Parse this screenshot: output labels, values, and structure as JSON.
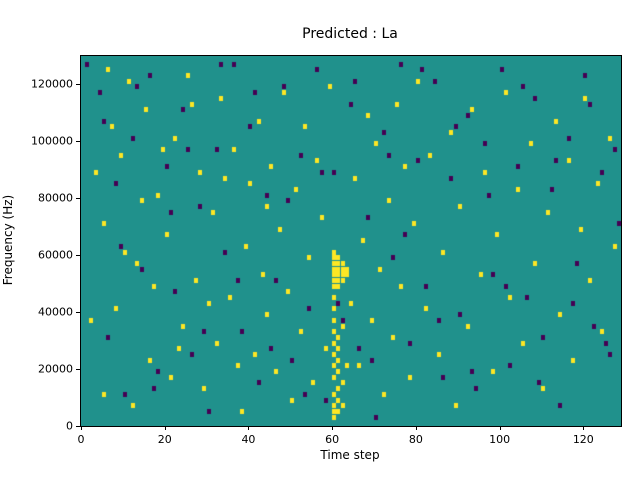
{
  "chart_data": {
    "type": "heatmap",
    "title": "Predicted : La",
    "xlabel": "Time step",
    "ylabel": "Frequency (Hz)",
    "xlim": [
      0,
      129
    ],
    "ylim": [
      0,
      130000
    ],
    "x_ticks": [
      0,
      20,
      40,
      60,
      80,
      100,
      120
    ],
    "y_ticks": [
      0,
      20000,
      40000,
      60000,
      80000,
      100000,
      120000
    ],
    "grid": {
      "cols": 129,
      "rows": 65,
      "cell_freq_hz": 2000
    },
    "colors": {
      "background": "#20918c",
      "high": "#fde724",
      "low": "#440154"
    },
    "legend": "none",
    "cells": {
      "yellow": [
        [
          60,
          1
        ],
        [
          60,
          2
        ],
        [
          60,
          3
        ],
        [
          60,
          5
        ],
        [
          60,
          8
        ],
        [
          60,
          10
        ],
        [
          60,
          12
        ],
        [
          60,
          14
        ],
        [
          60,
          16
        ],
        [
          60,
          18
        ],
        [
          60,
          20
        ],
        [
          60,
          22
        ],
        [
          60,
          24
        ],
        [
          60,
          25
        ],
        [
          60,
          26
        ],
        [
          60,
          27
        ],
        [
          60,
          28
        ],
        [
          60,
          29
        ],
        [
          60,
          30
        ],
        [
          61,
          2
        ],
        [
          61,
          4
        ],
        [
          61,
          6
        ],
        [
          61,
          9
        ],
        [
          61,
          11
        ],
        [
          61,
          13
        ],
        [
          61,
          15
        ],
        [
          61,
          24
        ],
        [
          61,
          25
        ],
        [
          61,
          26
        ],
        [
          61,
          27
        ],
        [
          61,
          28
        ],
        [
          61,
          29
        ],
        [
          62,
          3
        ],
        [
          62,
          7
        ],
        [
          62,
          17
        ],
        [
          62,
          25
        ],
        [
          62,
          26
        ],
        [
          62,
          27
        ],
        [
          62,
          28
        ],
        [
          63,
          10
        ],
        [
          63,
          26
        ],
        [
          63,
          27
        ],
        [
          5,
          5
        ],
        [
          5,
          35
        ],
        [
          6,
          62
        ],
        [
          8,
          20
        ],
        [
          9,
          47
        ],
        [
          12,
          3
        ],
        [
          13,
          28
        ],
        [
          15,
          55
        ],
        [
          16,
          11
        ],
        [
          18,
          40
        ],
        [
          20,
          33
        ],
        [
          21,
          8
        ],
        [
          22,
          50
        ],
        [
          24,
          17
        ],
        [
          25,
          61
        ],
        [
          27,
          25
        ],
        [
          28,
          44
        ],
        [
          29,
          6
        ],
        [
          31,
          37
        ],
        [
          32,
          14
        ],
        [
          33,
          57
        ],
        [
          35,
          22
        ],
        [
          36,
          48
        ],
        [
          38,
          2
        ],
        [
          39,
          31
        ],
        [
          40,
          42
        ],
        [
          41,
          12
        ],
        [
          42,
          53
        ],
        [
          43,
          26
        ],
        [
          44,
          38
        ],
        [
          44,
          19
        ],
        [
          45,
          45
        ],
        [
          46,
          9
        ],
        [
          47,
          34
        ],
        [
          48,
          58
        ],
        [
          49,
          23
        ],
        [
          50,
          4
        ],
        [
          51,
          41
        ],
        [
          52,
          16
        ],
        [
          53,
          52
        ],
        [
          54,
          29
        ],
        [
          55,
          7
        ],
        [
          56,
          46
        ],
        [
          57,
          36
        ],
        [
          58,
          13
        ],
        [
          59,
          59
        ],
        [
          64,
          21
        ],
        [
          65,
          43
        ],
        [
          66,
          10
        ],
        [
          67,
          32
        ],
        [
          68,
          54
        ],
        [
          69,
          18
        ],
        [
          70,
          49
        ],
        [
          71,
          27
        ],
        [
          72,
          5
        ],
        [
          73,
          39
        ],
        [
          74,
          15
        ],
        [
          75,
          56
        ],
        [
          76,
          24
        ],
        [
          77,
          45
        ],
        [
          78,
          8
        ],
        [
          79,
          35
        ],
        [
          80,
          60
        ],
        [
          82,
          20
        ],
        [
          83,
          47
        ],
        [
          85,
          12
        ],
        [
          86,
          30
        ],
        [
          88,
          51
        ],
        [
          89,
          3
        ],
        [
          90,
          38
        ],
        [
          92,
          17
        ],
        [
          93,
          55
        ],
        [
          95,
          26
        ],
        [
          96,
          44
        ],
        [
          98,
          9
        ],
        [
          99,
          33
        ],
        [
          101,
          58
        ],
        [
          102,
          22
        ],
        [
          104,
          41
        ],
        [
          105,
          14
        ],
        [
          107,
          49
        ],
        [
          108,
          28
        ],
        [
          110,
          6
        ],
        [
          111,
          37
        ],
        [
          113,
          53
        ],
        [
          114,
          19
        ],
        [
          116,
          46
        ],
        [
          117,
          11
        ],
        [
          119,
          34
        ],
        [
          120,
          57
        ],
        [
          121,
          25
        ],
        [
          123,
          42
        ],
        [
          124,
          16
        ],
        [
          126,
          50
        ],
        [
          127,
          31
        ],
        [
          3,
          44
        ],
        [
          2,
          18
        ],
        [
          7,
          52
        ],
        [
          10,
          30
        ],
        [
          11,
          60
        ],
        [
          14,
          39
        ],
        [
          17,
          24
        ],
        [
          19,
          48
        ],
        [
          23,
          13
        ],
        [
          26,
          56
        ],
        [
          30,
          21
        ],
        [
          34,
          43
        ],
        [
          37,
          10
        ]
      ],
      "purple": [
        [
          1,
          63
        ],
        [
          4,
          58
        ],
        [
          6,
          15
        ],
        [
          8,
          42
        ],
        [
          10,
          5
        ],
        [
          12,
          50
        ],
        [
          14,
          27
        ],
        [
          16,
          61
        ],
        [
          18,
          9
        ],
        [
          20,
          45
        ],
        [
          22,
          23
        ],
        [
          24,
          55
        ],
        [
          26,
          12
        ],
        [
          28,
          38
        ],
        [
          30,
          2
        ],
        [
          32,
          48
        ],
        [
          34,
          30
        ],
        [
          36,
          63
        ],
        [
          38,
          16
        ],
        [
          40,
          52
        ],
        [
          42,
          7
        ],
        [
          44,
          40
        ],
        [
          46,
          25
        ],
        [
          48,
          59
        ],
        [
          50,
          11
        ],
        [
          52,
          47
        ],
        [
          54,
          20
        ],
        [
          56,
          62
        ],
        [
          58,
          4
        ],
        [
          60,
          44
        ],
        [
          62,
          18
        ],
        [
          64,
          56
        ],
        [
          66,
          13
        ],
        [
          68,
          36
        ],
        [
          70,
          1
        ],
        [
          72,
          51
        ],
        [
          74,
          29
        ],
        [
          76,
          63
        ],
        [
          78,
          14
        ],
        [
          80,
          46
        ],
        [
          82,
          24
        ],
        [
          84,
          60
        ],
        [
          86,
          8
        ],
        [
          88,
          43
        ],
        [
          90,
          19
        ],
        [
          92,
          54
        ],
        [
          94,
          6
        ],
        [
          96,
          49
        ],
        [
          98,
          26
        ],
        [
          100,
          62
        ],
        [
          102,
          10
        ],
        [
          104,
          45
        ],
        [
          106,
          22
        ],
        [
          108,
          57
        ],
        [
          110,
          15
        ],
        [
          112,
          41
        ],
        [
          114,
          3
        ],
        [
          116,
          50
        ],
        [
          118,
          28
        ],
        [
          120,
          61
        ],
        [
          122,
          17
        ],
        [
          124,
          44
        ],
        [
          126,
          12
        ],
        [
          128,
          35
        ],
        [
          5,
          53
        ],
        [
          9,
          31
        ],
        [
          13,
          59
        ],
        [
          17,
          6
        ],
        [
          21,
          37
        ],
        [
          25,
          48
        ],
        [
          29,
          16
        ],
        [
          33,
          63
        ],
        [
          37,
          25
        ],
        [
          41,
          58
        ],
        [
          45,
          13
        ],
        [
          49,
          39
        ],
        [
          53,
          5
        ],
        [
          57,
          44
        ],
        [
          61,
          21
        ],
        [
          65,
          60
        ],
        [
          69,
          11
        ],
        [
          73,
          47
        ],
        [
          77,
          33
        ],
        [
          81,
          62
        ],
        [
          85,
          18
        ],
        [
          89,
          52
        ],
        [
          93,
          9
        ],
        [
          97,
          40
        ],
        [
          101,
          24
        ],
        [
          105,
          59
        ],
        [
          109,
          7
        ],
        [
          113,
          46
        ],
        [
          117,
          21
        ],
        [
          121,
          56
        ],
        [
          125,
          14
        ],
        [
          127,
          48
        ]
      ]
    }
  }
}
